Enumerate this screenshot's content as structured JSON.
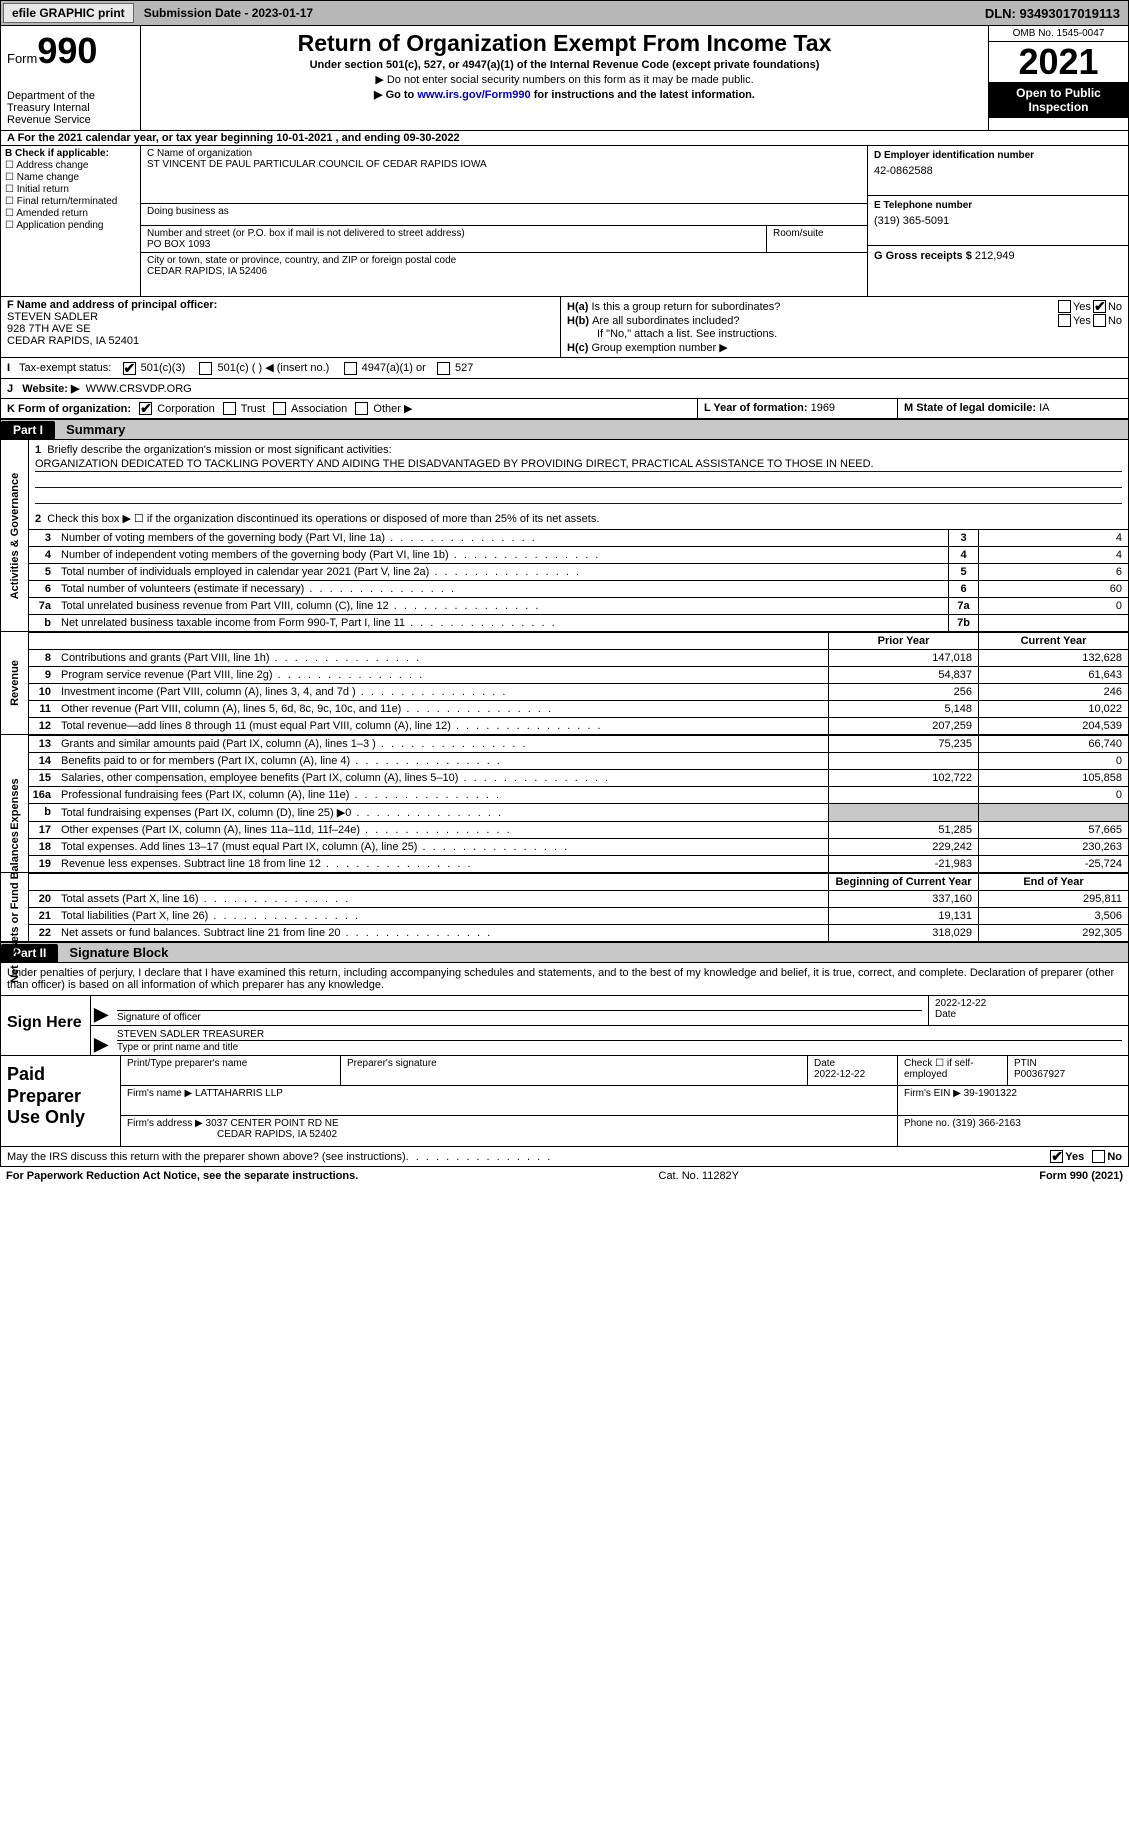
{
  "topbar": {
    "efile": "efile GRAPHIC print",
    "submission": "Submission Date - 2023-01-17",
    "dln": "DLN: 93493017019113"
  },
  "header": {
    "form_word": "Form",
    "form_num": "990",
    "title": "Return of Organization Exempt From Income Tax",
    "sub1": "Under section 501(c), 527, or 4947(a)(1) of the Internal Revenue Code (except private foundations)",
    "sub2": "▶ Do not enter social security numbers on this form as it may be made public.",
    "sub3_pre": "▶ Go to ",
    "sub3_link": "www.irs.gov/Form990",
    "sub3_post": " for instructions and the latest information.",
    "dept": "Department of the Treasury Internal Revenue Service",
    "omb": "OMB No. 1545-0047",
    "year": "2021",
    "open": "Open to Public Inspection"
  },
  "row_a": "A For the 2021 calendar year, or tax year beginning 10-01-2021   , and ending 09-30-2022",
  "col_b": {
    "hdr": "B Check if applicable:",
    "items": [
      "Address change",
      "Name change",
      "Initial return",
      "Final return/terminated",
      "Amended return",
      "Application pending"
    ]
  },
  "col_c": {
    "name_lbl": "C Name of organization",
    "name": "ST VINCENT DE PAUL PARTICULAR COUNCIL OF CEDAR RAPIDS IOWA",
    "dba_lbl": "Doing business as",
    "addr_lbl": "Number and street (or P.O. box if mail is not delivered to street address)",
    "addr": "PO BOX 1093",
    "room_lbl": "Room/suite",
    "city_lbl": "City or town, state or province, country, and ZIP or foreign postal code",
    "city": "CEDAR RAPIDS, IA  52406"
  },
  "col_d": {
    "ein_lbl": "D Employer identification number",
    "ein": "42-0862588",
    "tel_lbl": "E Telephone number",
    "tel": "(319) 365-5091",
    "gross_lbl": "G Gross receipts $",
    "gross": "212,949"
  },
  "col_f": {
    "lbl": "F Name and address of principal officer:",
    "name": "STEVEN SADLER",
    "addr1": "928 7TH AVE SE",
    "addr2": "CEDAR RAPIDS, IA  52401"
  },
  "col_h": {
    "a_lbl": "H(a)",
    "a_txt": "Is this a group return for subordinates?",
    "b_lbl": "H(b)",
    "b_txt": "Are all subordinates included?",
    "b_note": "If \"No,\" attach a list. See instructions.",
    "c_lbl": "H(c)",
    "c_txt": "Group exemption number ▶",
    "yes": "Yes",
    "no": "No"
  },
  "row_i": {
    "lbl": "I",
    "txt": "Tax-exempt status:",
    "o1": "501(c)(3)",
    "o2": "501(c) (  ) ◀ (insert no.)",
    "o3": "4947(a)(1) or",
    "o4": "527"
  },
  "row_j": {
    "lbl": "J",
    "txt": "Website: ▶",
    "val": "WWW.CRSVDP.ORG"
  },
  "row_k": {
    "lbl": "K Form of organization:",
    "o1": "Corporation",
    "o2": "Trust",
    "o3": "Association",
    "o4": "Other ▶",
    "l_lbl": "L Year of formation:",
    "l_val": "1969",
    "m_lbl": "M State of legal domicile:",
    "m_val": "IA"
  },
  "part1": {
    "hdr": "Part I",
    "title": "Summary"
  },
  "mission": {
    "lbl": "1",
    "txt": "Briefly describe the organization's mission or most significant activities:",
    "val": "ORGANIZATION DEDICATED TO TACKLING POVERTY AND AIDING THE DISADVANTAGED BY PROVIDING DIRECT, PRACTICAL ASSISTANCE TO THOSE IN NEED."
  },
  "gov": {
    "side": "Activities & Governance",
    "r2": "Check this box ▶ ☐ if the organization discontinued its operations or disposed of more than 25% of its net assets.",
    "rows": [
      {
        "n": "3",
        "t": "Number of voting members of the governing body (Part VI, line 1a)",
        "b": "3",
        "v": "4"
      },
      {
        "n": "4",
        "t": "Number of independent voting members of the governing body (Part VI, line 1b)",
        "b": "4",
        "v": "4"
      },
      {
        "n": "5",
        "t": "Total number of individuals employed in calendar year 2021 (Part V, line 2a)",
        "b": "5",
        "v": "6"
      },
      {
        "n": "6",
        "t": "Total number of volunteers (estimate if necessary)",
        "b": "6",
        "v": "60"
      },
      {
        "n": "7a",
        "t": "Total unrelated business revenue from Part VIII, column (C), line 12",
        "b": "7a",
        "v": "0"
      },
      {
        "n": "b",
        "t": "Net unrelated business taxable income from Form 990-T, Part I, line 11",
        "b": "7b",
        "v": ""
      }
    ]
  },
  "fin_hdr": {
    "h1": "Prior Year",
    "h2": "Current Year"
  },
  "revenue": {
    "side": "Revenue",
    "rows": [
      {
        "n": "8",
        "t": "Contributions and grants (Part VIII, line 1h)",
        "v1": "147,018",
        "v2": "132,628"
      },
      {
        "n": "9",
        "t": "Program service revenue (Part VIII, line 2g)",
        "v1": "54,837",
        "v2": "61,643"
      },
      {
        "n": "10",
        "t": "Investment income (Part VIII, column (A), lines 3, 4, and 7d )",
        "v1": "256",
        "v2": "246"
      },
      {
        "n": "11",
        "t": "Other revenue (Part VIII, column (A), lines 5, 6d, 8c, 9c, 10c, and 11e)",
        "v1": "5,148",
        "v2": "10,022"
      },
      {
        "n": "12",
        "t": "Total revenue—add lines 8 through 11 (must equal Part VIII, column (A), line 12)",
        "v1": "207,259",
        "v2": "204,539"
      }
    ]
  },
  "expenses": {
    "side": "Expenses",
    "rows": [
      {
        "n": "13",
        "t": "Grants and similar amounts paid (Part IX, column (A), lines 1–3 )",
        "v1": "75,235",
        "v2": "66,740"
      },
      {
        "n": "14",
        "t": "Benefits paid to or for members (Part IX, column (A), line 4)",
        "v1": "",
        "v2": "0"
      },
      {
        "n": "15",
        "t": "Salaries, other compensation, employee benefits (Part IX, column (A), lines 5–10)",
        "v1": "102,722",
        "v2": "105,858"
      },
      {
        "n": "16a",
        "t": "Professional fundraising fees (Part IX, column (A), line 11e)",
        "v1": "",
        "v2": "0"
      },
      {
        "n": "b",
        "t": "Total fundraising expenses (Part IX, column (D), line 25) ▶0",
        "v1": "GREY",
        "v2": "GREY"
      },
      {
        "n": "17",
        "t": "Other expenses (Part IX, column (A), lines 11a–11d, 11f–24e)",
        "v1": "51,285",
        "v2": "57,665"
      },
      {
        "n": "18",
        "t": "Total expenses. Add lines 13–17 (must equal Part IX, column (A), line 25)",
        "v1": "229,242",
        "v2": "230,263"
      },
      {
        "n": "19",
        "t": "Revenue less expenses. Subtract line 18 from line 12",
        "v1": "-21,983",
        "v2": "-25,724"
      }
    ]
  },
  "net_hdr": {
    "h1": "Beginning of Current Year",
    "h2": "End of Year"
  },
  "netassets": {
    "side": "Net Assets or Fund Balances",
    "rows": [
      {
        "n": "20",
        "t": "Total assets (Part X, line 16)",
        "v1": "337,160",
        "v2": "295,811"
      },
      {
        "n": "21",
        "t": "Total liabilities (Part X, line 26)",
        "v1": "19,131",
        "v2": "3,506"
      },
      {
        "n": "22",
        "t": "Net assets or fund balances. Subtract line 21 from line 20",
        "v1": "318,029",
        "v2": "292,305"
      }
    ]
  },
  "part2": {
    "hdr": "Part II",
    "title": "Signature Block"
  },
  "sig_text": "Under penalties of perjury, I declare that I have examined this return, including accompanying schedules and statements, and to the best of my knowledge and belief, it is true, correct, and complete. Declaration of preparer (other than officer) is based on all information of which preparer has any knowledge.",
  "sign": {
    "left": "Sign Here",
    "sig_lbl": "Signature of officer",
    "date": "2022-12-22",
    "date_lbl": "Date",
    "name": "STEVEN SADLER TREASURER",
    "name_lbl": "Type or print name and title"
  },
  "prep": {
    "left": "Paid Preparer Use Only",
    "r1": {
      "c1": "Print/Type preparer's name",
      "c2": "Preparer's signature",
      "c3_lbl": "Date",
      "c3": "2022-12-22",
      "c4": "Check ☐ if self-employed",
      "c5_lbl": "PTIN",
      "c5": "P00367927"
    },
    "r2": {
      "c1": "Firm's name    ▶",
      "c1v": "LATTAHARRIS LLP",
      "c2": "Firm's EIN ▶",
      "c2v": "39-1901322"
    },
    "r3": {
      "c1": "Firm's address ▶",
      "c1v": "3037 CENTER POINT RD NE",
      "c1v2": "CEDAR RAPIDS, IA  52402",
      "c2": "Phone no.",
      "c2v": "(319) 366-2163"
    }
  },
  "irs_row": {
    "txt": "May the IRS discuss this return with the preparer shown above? (see instructions)",
    "yes": "Yes",
    "no": "No"
  },
  "footer": {
    "left": "For Paperwork Reduction Act Notice, see the separate instructions.",
    "mid": "Cat. No. 11282Y",
    "right": "Form 990 (2021)"
  }
}
